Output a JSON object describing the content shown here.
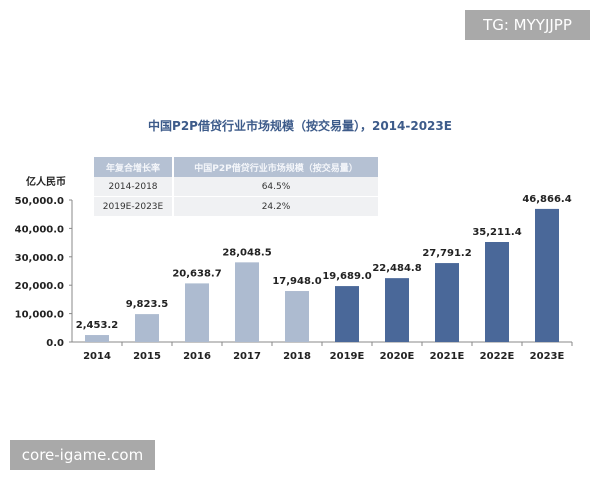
{
  "watermarks": {
    "top_right": "TG: MYYJJPP",
    "bottom_left": "core-igame.com"
  },
  "chart_data": {
    "type": "bar",
    "title": "中国P2P借贷行业市场规模（按交易量），2014-2023E",
    "ylabel": "亿人民币",
    "ylim": [
      0,
      50000
    ],
    "yticks": [
      "0.0",
      "10,000.0",
      "20,000.0",
      "30,000.0",
      "40,000.0",
      "50,000.0"
    ],
    "categories": [
      "2014",
      "2015",
      "2016",
      "2017",
      "2018",
      "2019E",
      "2020E",
      "2021E",
      "2022E",
      "2023E"
    ],
    "values": [
      2453.2,
      9823.5,
      20638.7,
      28048.5,
      17948.0,
      19689.0,
      22484.8,
      27791.2,
      35211.4,
      46866.4
    ],
    "labels": [
      "2,453.2",
      "9,823.5",
      "20,638.7",
      "28,048.5",
      "17,948.0",
      "19,689.0",
      "22,484.8",
      "27,791.2",
      "35,211.4",
      "46,866.4"
    ],
    "colors": {
      "actual": "#adbbd0",
      "forecast": "#4a6899",
      "title": "#3d5b8a"
    },
    "grid": false,
    "table": {
      "headers": [
        "年复合增长率",
        "中国P2P借贷行业市场规模（按交易量）"
      ],
      "rows": [
        [
          "2014-2018",
          "64.5%"
        ],
        [
          "2019E-2023E",
          "24.2%"
        ]
      ]
    }
  }
}
